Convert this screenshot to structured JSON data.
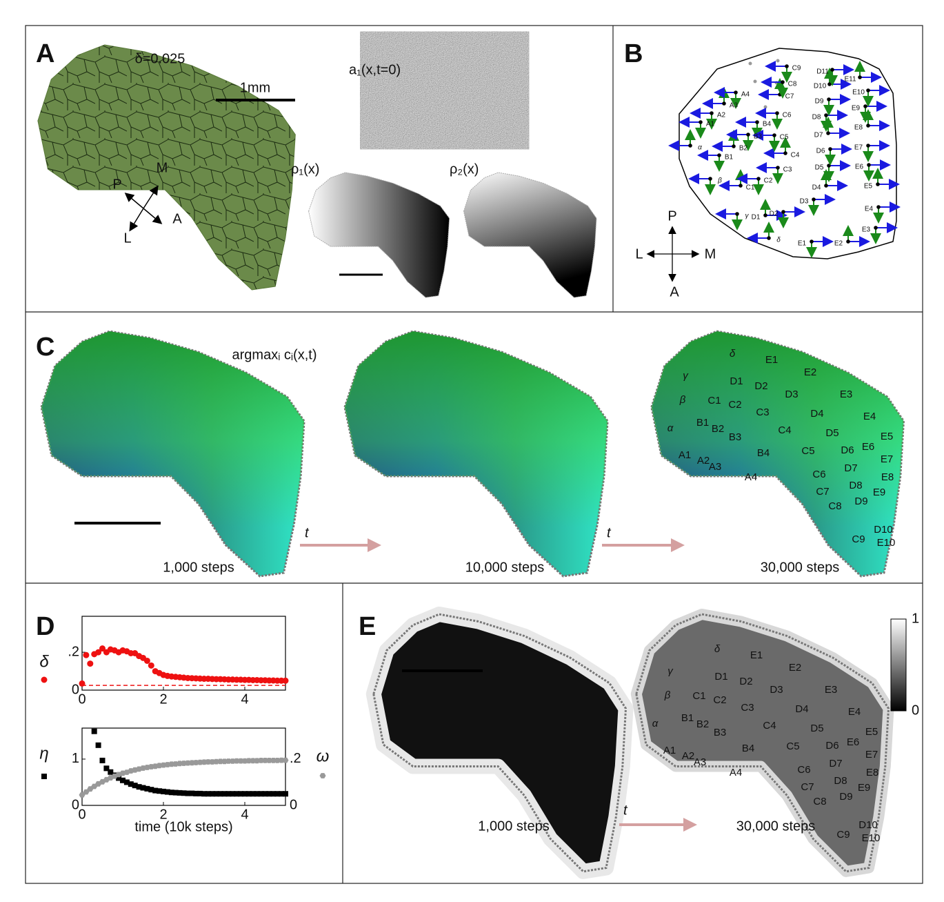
{
  "panels": {
    "A": {
      "label": "A",
      "delta": "δ=0.025",
      "scale_bar": "1mm",
      "a1": "a₁(x,t=0)",
      "rho1": "ρ₁(x)",
      "rho2": "ρ₂(x)",
      "compass": [
        "P",
        "M",
        "L",
        "A"
      ]
    },
    "B": {
      "label": "B",
      "compass": [
        "P",
        "L",
        "M",
        "A"
      ],
      "barrels": [
        "α",
        "β",
        "γ",
        "δ",
        "A1",
        "A2",
        "A3",
        "A4",
        "B1",
        "B2",
        "B3",
        "B4",
        "C1",
        "C2",
        "C3",
        "C4",
        "C5",
        "C6",
        "C7",
        "C8",
        "C9",
        "D1",
        "D2",
        "D3",
        "D4",
        "D5",
        "D6",
        "D7",
        "D8",
        "D9",
        "D10",
        "D11",
        "E1",
        "E2",
        "E3",
        "E4",
        "E5",
        "E6",
        "E7",
        "E8",
        "E9",
        "E10",
        "E11"
      ]
    },
    "C": {
      "label": "C",
      "title": "argmaxᵢ cᵢ(x,t)",
      "steps": [
        "1,000 steps",
        "10,000 steps",
        "30,000 steps"
      ],
      "time": [
        "t",
        "t"
      ],
      "barrels": [
        "α",
        "β",
        "γ",
        "δ",
        "A1",
        "A2",
        "A3",
        "A4",
        "B1",
        "B2",
        "B3",
        "B4",
        "C1",
        "C2",
        "C3",
        "C4",
        "C5",
        "C6",
        "C7",
        "C8",
        "C9",
        "D1",
        "D2",
        "D3",
        "D4",
        "D5",
        "D6",
        "D7",
        "D8",
        "D9",
        "D10",
        "E1",
        "E2",
        "E3",
        "E4",
        "E5",
        "E6",
        "E7",
        "E8",
        "E9",
        "E10"
      ]
    },
    "D": {
      "label": "D"
    },
    "E": {
      "label": "E",
      "steps": [
        "1,000 steps",
        "30,000 steps"
      ],
      "time": "t",
      "colorbar_ticks": [
        0,
        1
      ],
      "barrels": [
        "α",
        "β",
        "γ",
        "δ",
        "A1",
        "A2",
        "A3",
        "A4",
        "B1",
        "B2",
        "B3",
        "B4",
        "C1",
        "C2",
        "C3",
        "C4",
        "C5",
        "C6",
        "C7",
        "C8",
        "C9",
        "D1",
        "D2",
        "D3",
        "D4",
        "D5",
        "D6",
        "D7",
        "D8",
        "D9",
        "D10",
        "E1",
        "E2",
        "E3",
        "E4",
        "E5",
        "E6",
        "E7",
        "E8",
        "E9",
        "E10"
      ]
    }
  },
  "chart_data": [
    {
      "type": "scatter",
      "x": [
        0,
        0.1,
        0.2,
        0.3,
        0.4,
        0.5,
        0.6,
        0.7,
        0.8,
        0.9,
        1,
        1.1,
        1.2,
        1.3,
        1.4,
        1.5,
        1.6,
        1.7,
        1.8,
        1.9,
        2,
        2.1,
        2.2,
        2.3,
        2.4,
        2.5,
        2.6,
        2.7,
        2.8,
        2.9,
        3,
        3.1,
        3.2,
        3.3,
        3.4,
        3.5,
        3.6,
        3.7,
        3.8,
        3.9,
        4,
        4.1,
        4.2,
        4.3,
        4.4,
        4.5,
        4.6,
        4.7,
        4.8,
        4.9,
        5
      ],
      "series": [
        {
          "name": "δ",
          "color": "#ee1111",
          "marker": "circle",
          "values": [
            0.035,
            0.185,
            0.14,
            0.19,
            0.2,
            0.22,
            0.2,
            0.215,
            0.21,
            0.2,
            0.21,
            0.205,
            0.195,
            0.195,
            0.18,
            0.17,
            0.155,
            0.13,
            0.1,
            0.09,
            0.08,
            0.075,
            0.072,
            0.07,
            0.068,
            0.066,
            0.064,
            0.063,
            0.062,
            0.061,
            0.06,
            0.06,
            0.059,
            0.058,
            0.058,
            0.057,
            0.056,
            0.056,
            0.055,
            0.055,
            0.054,
            0.054,
            0.053,
            0.053,
            0.052,
            0.052,
            0.051,
            0.051,
            0.05,
            0.05,
            0.05
          ]
        }
      ],
      "hline": 0.025,
      "hline_color": "#ee1111",
      "xlim": [
        0,
        5
      ],
      "xticks": [
        0,
        2,
        4
      ],
      "ylim": [
        0,
        0.39
      ],
      "yticks": [
        0,
        {
          "value": 0.2,
          "label": ".2"
        }
      ]
    },
    {
      "type": "scatter",
      "x": [
        0,
        0.1,
        0.2,
        0.3,
        0.4,
        0.5,
        0.6,
        0.7,
        0.8,
        0.9,
        1,
        1.1,
        1.2,
        1.3,
        1.4,
        1.5,
        1.6,
        1.7,
        1.8,
        1.9,
        2,
        2.1,
        2.2,
        2.3,
        2.4,
        2.5,
        2.6,
        2.7,
        2.8,
        2.9,
        3,
        3.1,
        3.2,
        3.3,
        3.4,
        3.5,
        3.6,
        3.7,
        3.8,
        3.9,
        4,
        4.1,
        4.2,
        4.3,
        4.4,
        4.5,
        4.6,
        4.7,
        4.8,
        4.9,
        5
      ],
      "xlabel": "time (10k steps)",
      "series": [
        {
          "name": "η",
          "color": "#000000",
          "marker": "square",
          "values": [
            null,
            null,
            null,
            1.6,
            1.3,
            0.97,
            0.8,
            0.72,
            0.65,
            0.59,
            0.54,
            0.5,
            0.46,
            0.43,
            0.4,
            0.38,
            0.36,
            0.34,
            0.32,
            0.31,
            0.3,
            0.29,
            0.28,
            0.275,
            0.27,
            0.265,
            0.26,
            0.26,
            0.255,
            0.255,
            0.25,
            0.25,
            0.25,
            0.25,
            0.25,
            0.25,
            0.25,
            0.25,
            0.25,
            0.25,
            0.25,
            0.25,
            0.25,
            0.25,
            0.25,
            0.25,
            0.25,
            0.25,
            0.25,
            0.25,
            0.25
          ]
        },
        {
          "name": "ω",
          "color": "#999999",
          "marker": "hexagon",
          "axis": "y2",
          "values": [
            0.045,
            0.058,
            0.071,
            0.082,
            0.093,
            0.102,
            0.111,
            0.119,
            0.126,
            0.133,
            0.139,
            0.143,
            0.149,
            0.153,
            0.157,
            0.161,
            0.164,
            0.167,
            0.169,
            0.172,
            0.174,
            0.176,
            0.178,
            0.179,
            0.181,
            0.182,
            0.183,
            0.184,
            0.185,
            0.186,
            0.187,
            0.188,
            0.188,
            0.189,
            0.19,
            0.19,
            0.191,
            0.191,
            0.192,
            0.192,
            0.192,
            0.193,
            0.193,
            0.193,
            0.194,
            0.194,
            0.194,
            0.194,
            0.194,
            0.195,
            0.195
          ]
        }
      ],
      "xlim": [
        0,
        5
      ],
      "xticks": [
        0,
        2,
        4
      ],
      "ylim": [
        0,
        1.67
      ],
      "yticks": [
        0,
        1
      ],
      "y2lim": [
        0,
        0.334
      ],
      "y2ticks": [
        0,
        {
          "value": 0.2,
          "label": ".2"
        }
      ]
    }
  ]
}
